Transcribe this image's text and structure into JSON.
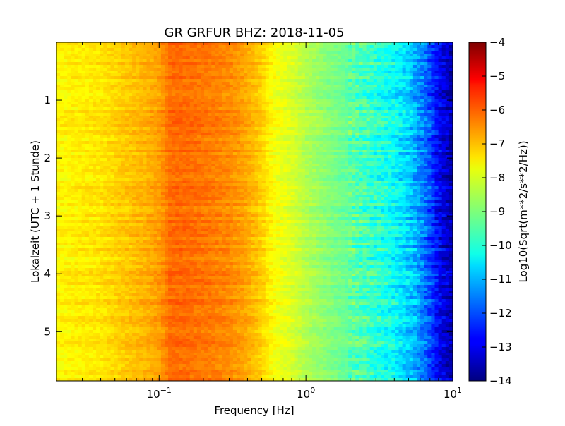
{
  "chart_data": {
    "type": "heatmap",
    "title": "GR GRFUR BHZ: 2018-11-05",
    "xlabel": "Frequency [Hz]",
    "ylabel": "Lokalzeit (UTC + 1 Stunde)",
    "x_scale": "log",
    "xlim": [
      0.02,
      10
    ],
    "ylim": [
      0,
      5.85
    ],
    "y_inverted": true,
    "x_major_ticks": [
      {
        "value": 0.1,
        "base": "10",
        "exp": "-1"
      },
      {
        "value": 1,
        "base": "10",
        "exp": "0"
      },
      {
        "value": 10,
        "base": "10",
        "exp": "1"
      }
    ],
    "y_ticks": [
      1,
      2,
      3,
      4,
      5
    ],
    "y_tick_labels": [
      "1",
      "2",
      "3",
      "4",
      "5"
    ],
    "colorbar": {
      "label": "Log10(Sqrt(m**2/s**2/Hz))",
      "colormap": "jet",
      "range": [
        -14,
        -4
      ],
      "ticks": [
        -4,
        -5,
        -6,
        -7,
        -8,
        -9,
        -10,
        -11,
        -12,
        -13,
        -14
      ],
      "tick_labels": [
        "−4",
        "−5",
        "−6",
        "−7",
        "−8",
        "−9",
        "−10",
        "−11",
        "−12",
        "−13",
        "−14"
      ]
    },
    "spectrum_profile": {
      "frequency_hz": [
        0.02,
        0.04,
        0.06,
        0.08,
        0.1,
        0.12,
        0.15,
        0.2,
        0.3,
        0.4,
        0.5,
        0.6,
        0.8,
        1.0,
        1.5,
        2.0,
        3.0,
        4.0,
        5.0,
        6.0,
        7.0,
        8.0,
        10.0
      ],
      "level": [
        -7.7,
        -7.5,
        -7.2,
        -7.0,
        -6.8,
        -6.3,
        -6.3,
        -6.4,
        -6.6,
        -6.9,
        -7.3,
        -7.8,
        -8.1,
        -8.5,
        -9.0,
        -9.3,
        -9.8,
        -10.2,
        -10.7,
        -11.3,
        -12.0,
        -12.8,
        -13.6
      ]
    }
  }
}
